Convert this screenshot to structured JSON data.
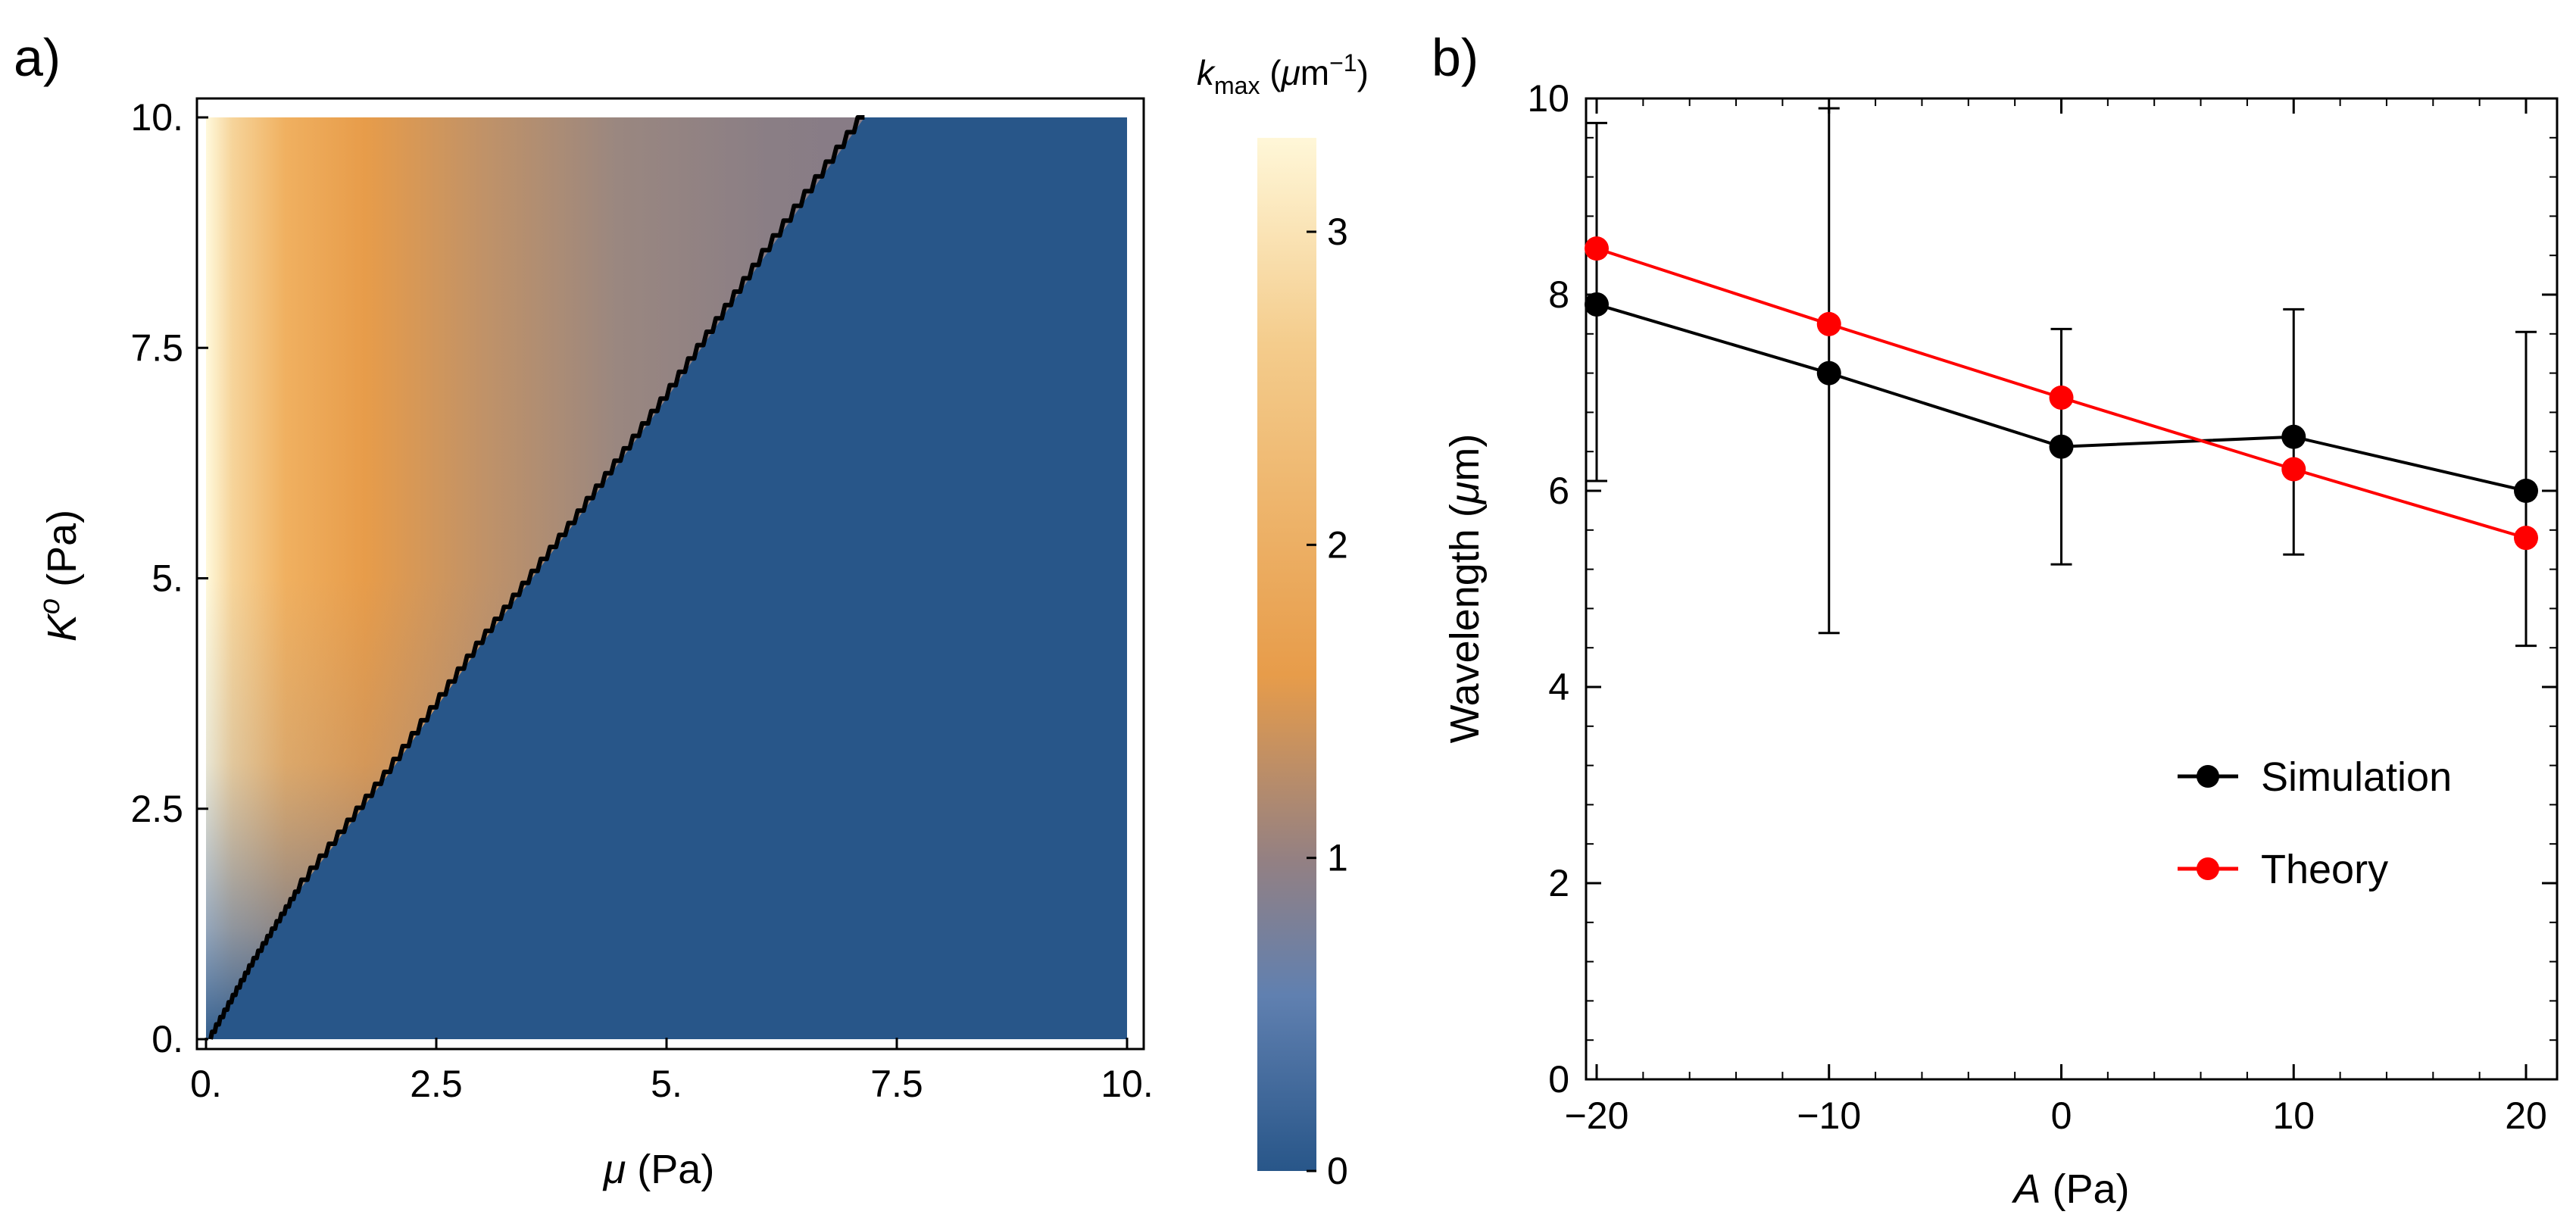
{
  "figure": {
    "colors": {
      "stable_blue": "#285689",
      "boundary": "#000000",
      "simulation": "#000000",
      "theory": "#ff0000",
      "colormap": [
        "#285689",
        "#6080b0",
        "#938083",
        "#e79c4a",
        "#f4cc8c",
        "#fff7d8"
      ]
    }
  },
  "chart_data": [
    {
      "panel": "a)",
      "type": "heatmap",
      "title": "",
      "xlabel": {
        "symbol": "μ",
        "unit": " (Pa)"
      },
      "ylabel": {
        "symbol": "K",
        "superscript": "o",
        "unit": " (Pa)"
      },
      "xlim": [
        0,
        10
      ],
      "ylim": [
        0,
        10
      ],
      "xticks": [
        {
          "value": 0,
          "label": "0."
        },
        {
          "value": 2.5,
          "label": "2.5"
        },
        {
          "value": 5,
          "label": "5."
        },
        {
          "value": 7.5,
          "label": "7.5"
        },
        {
          "value": 10,
          "label": "10."
        }
      ],
      "yticks": [
        {
          "value": 0,
          "label": "0."
        },
        {
          "value": 2.5,
          "label": "2.5"
        },
        {
          "value": 5,
          "label": "5."
        },
        {
          "value": 7.5,
          "label": "7.5"
        },
        {
          "value": 10,
          "label": "10."
        }
      ],
      "boundary_curve": [
        [
          0.05,
          0
        ],
        [
          0.5,
          0.8
        ],
        [
          1.0,
          1.6
        ],
        [
          2.0,
          2.9
        ],
        [
          3.0,
          4.3
        ],
        [
          4.0,
          5.6
        ],
        [
          5.0,
          6.95
        ],
        [
          6.0,
          8.4
        ],
        [
          7.15,
          10.0
        ]
      ],
      "stable_region_value": 0,
      "colorbar": {
        "label": {
          "symbol": "k",
          "subscript": "max",
          "unit_open": " (",
          "unit_symbol": "μ",
          "unit_base": "m",
          "unit_exponent": "−1",
          "unit_close": ")"
        },
        "range": [
          0,
          3.3
        ],
        "ticks": [
          {
            "value": 0,
            "label": "0"
          },
          {
            "value": 1,
            "label": "1"
          },
          {
            "value": 2,
            "label": "2"
          },
          {
            "value": 3,
            "label": "3"
          }
        ]
      }
    },
    {
      "panel": "b)",
      "type": "line",
      "title": "",
      "xlabel": {
        "symbol": "A",
        "unit": " (Pa)"
      },
      "ylabel": {
        "text": "Wavelength (",
        "symbol": "μ",
        "unit": "m)"
      },
      "xlim": [
        -20,
        20
      ],
      "ylim": [
        0,
        10
      ],
      "xticks": [
        {
          "value": -20,
          "label": "−20"
        },
        {
          "value": -10,
          "label": "−10"
        },
        {
          "value": 0,
          "label": "0"
        },
        {
          "value": 10,
          "label": "10"
        },
        {
          "value": 20,
          "label": "20"
        }
      ],
      "yticks": [
        {
          "value": 0,
          "label": "0"
        },
        {
          "value": 2,
          "label": "2"
        },
        {
          "value": 4,
          "label": "4"
        },
        {
          "value": 6,
          "label": "6"
        },
        {
          "value": 8,
          "label": "8"
        },
        {
          "value": 10,
          "label": "10"
        }
      ],
      "x": [
        -20,
        -10,
        0,
        10,
        20
      ],
      "series": [
        {
          "name": "Simulation",
          "color": "#000000",
          "values": [
            7.9,
            7.2,
            6.45,
            6.55,
            6.0
          ],
          "error_low": [
            6.1,
            4.55,
            5.25,
            5.35,
            4.42
          ],
          "error_high": [
            9.75,
            9.9,
            7.65,
            7.85,
            7.62
          ]
        },
        {
          "name": "Theory",
          "color": "#ff0000",
          "values": [
            8.47,
            7.7,
            6.95,
            6.22,
            5.52
          ]
        }
      ],
      "legend_position": "lower-right"
    }
  ]
}
